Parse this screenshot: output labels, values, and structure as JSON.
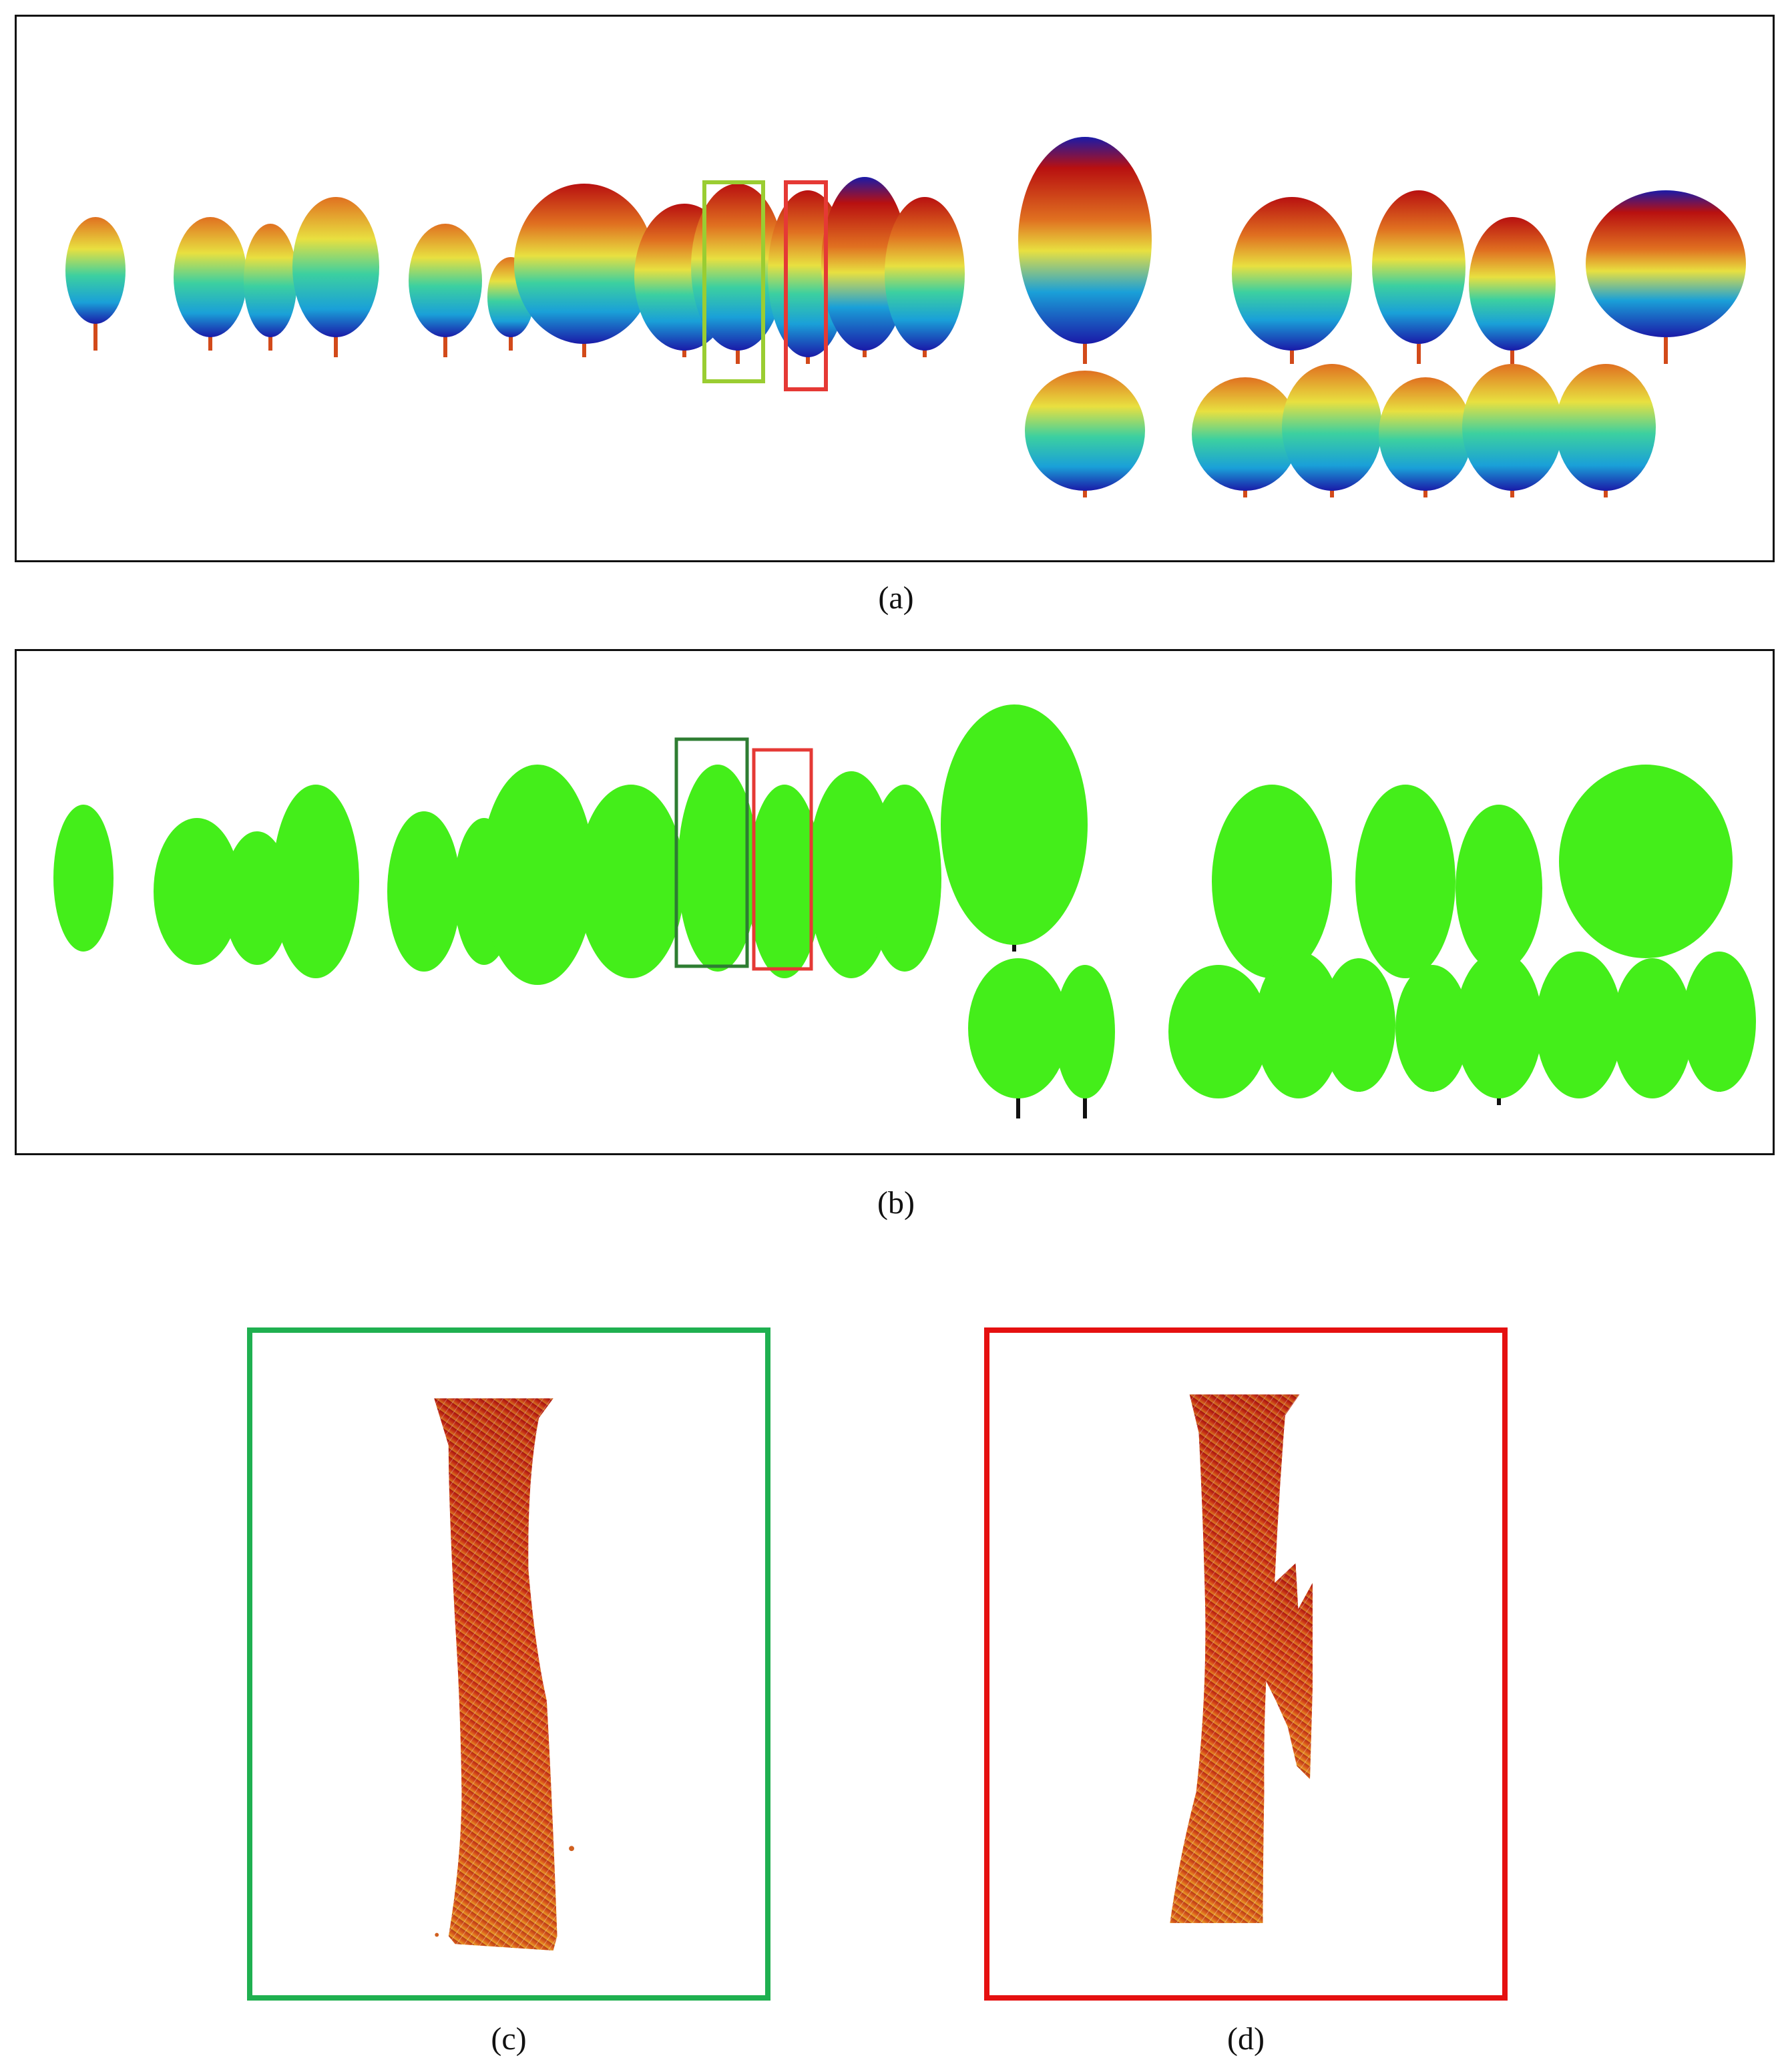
{
  "captions": {
    "a": "(a)",
    "b": "(b)",
    "c": "(c)",
    "d": "(d)"
  },
  "colors": {
    "height_gradient": [
      "#1a1aa8",
      "#1aa0d8",
      "#3cd0a0",
      "#e8e040",
      "#e07020",
      "#b81010"
    ],
    "segmented_crown": "#44ee1a",
    "segmented_trunk": "#111111",
    "box_correct_a": "#9acd32",
    "box_correct_b": "#2e7d32",
    "box_incorrect": "#e53935",
    "frame_c": "#1fb050",
    "frame_d": "#e51010",
    "trunk_top": "#a01010",
    "trunk_bottom": "#e8a020"
  },
  "icons": {
    "panel_a": "height-colored-point-cloud",
    "panel_b": "segmented-point-cloud",
    "panel_c": "single-trunk-point-cloud",
    "panel_d": "merged-trunk-point-cloud"
  }
}
